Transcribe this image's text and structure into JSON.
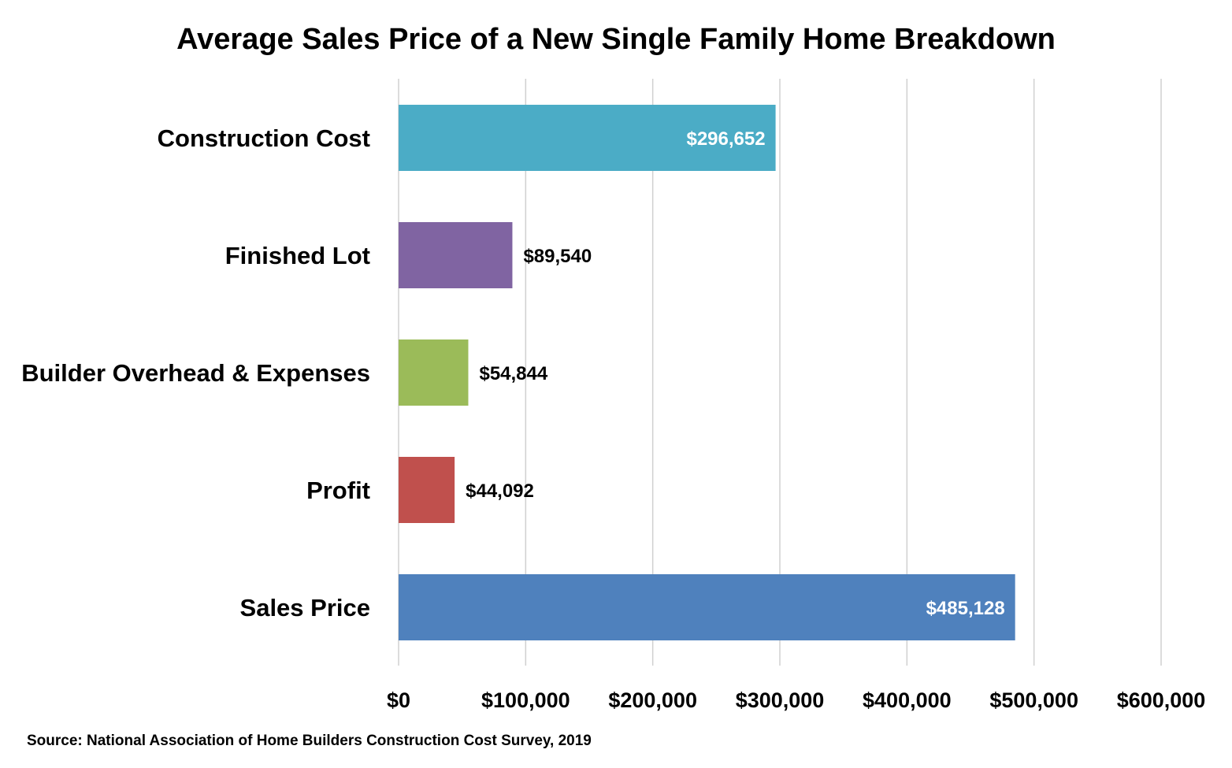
{
  "chart_data": {
    "type": "bar",
    "orientation": "horizontal",
    "title": "Average Sales Price of a New Single Family Home Breakdown",
    "xlabel": "",
    "ylabel": "",
    "categories": [
      "Construction Cost",
      "Finished Lot",
      "Builder Overhead & Expenses",
      "Profit",
      "Sales Price"
    ],
    "values": [
      296652,
      89540,
      54844,
      44092,
      485128
    ],
    "data_labels": [
      "$296,652",
      "$89,540",
      "$54,844",
      "$44,092",
      "$485,128"
    ],
    "colors": [
      "#4BACC6",
      "#8064A2",
      "#9BBB59",
      "#C0504D",
      "#4F81BD"
    ],
    "xlim": [
      0,
      600000
    ],
    "xticks": [
      0,
      100000,
      200000,
      300000,
      400000,
      500000,
      600000
    ],
    "xtick_labels": [
      "$0",
      "$100,000",
      "$200,000",
      "$300,000",
      "$400,000",
      "$500,000",
      "$600,000"
    ],
    "grid": "vertical",
    "legend": "none"
  },
  "source": "Source: National Association of Home Builders Construction Cost Survey, 2019"
}
